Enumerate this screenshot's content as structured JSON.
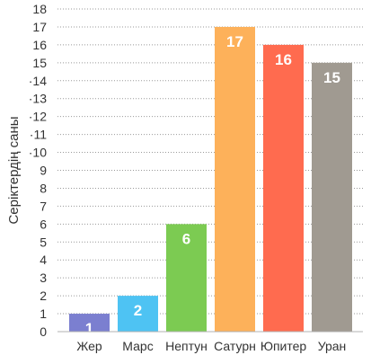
{
  "chart_data": {
    "type": "bar",
    "title": "",
    "xlabel": "",
    "ylabel": "Серіктердің саны",
    "categories": [
      "Жер",
      "Марс",
      "Нептун",
      "Сатурн",
      "Юпитер",
      "Уран"
    ],
    "values": [
      1,
      2,
      6,
      17,
      16,
      15
    ],
    "value_labels": [
      "1",
      "2",
      "6",
      "17",
      "16",
      "15"
    ],
    "ylim": [
      0,
      18
    ],
    "yticks": [
      0,
      1,
      2,
      3,
      4,
      5,
      6,
      7,
      8,
      9,
      10,
      11,
      12,
      13,
      14,
      15,
      16,
      17,
      18
    ],
    "ytick_labels": [
      "0",
      "1",
      "2",
      "3",
      "4",
      "5",
      "6",
      "7",
      "8",
      "9",
      "·10",
      "·11",
      "·12",
      "·13",
      "·14",
      "15",
      "16",
      "17",
      "18"
    ],
    "grid": true,
    "colors": [
      "#7b7fd0",
      "#4ec3f3",
      "#7ccb52",
      "#fdb15a",
      "#ff6b4f",
      "#a09a91"
    ]
  }
}
